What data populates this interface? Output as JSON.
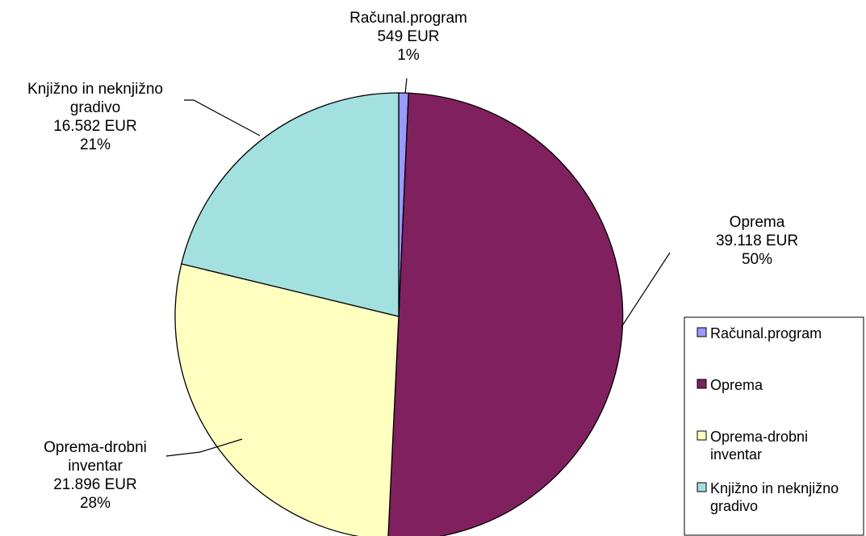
{
  "chart_data": {
    "type": "pie",
    "title": "",
    "unit": "EUR",
    "legend_position": "right",
    "slices": [
      {
        "name": "Računal.program",
        "label_lines": [
          "Računal.program"
        ],
        "value_label": "549 EUR",
        "percent_label": "1%",
        "value": 549,
        "color": "#9999ff",
        "legend_lines": [
          "Računal.program"
        ]
      },
      {
        "name": "Oprema",
        "label_lines": [
          "Oprema"
        ],
        "value_label": "39.118 EUR",
        "percent_label": "50%",
        "value": 39118,
        "color": "#80205f",
        "legend_lines": [
          "Oprema"
        ]
      },
      {
        "name": "Oprema-drobni inventar",
        "label_lines": [
          "Oprema-drobni",
          "inventar"
        ],
        "value_label": "21.896 EUR",
        "percent_label": "28%",
        "value": 21896,
        "color": "#ffffc0",
        "legend_lines": [
          "Oprema-drobni",
          "inventar"
        ]
      },
      {
        "name": "Knjižno in neknjižno gradivo",
        "label_lines": [
          "Knjižno in neknjižno",
          "gradivo"
        ],
        "value_label": "16.582 EUR",
        "percent_label": "21%",
        "value": 16582,
        "color": "#a3e0e0",
        "legend_lines": [
          "Knjižno in neknjižno",
          "gradivo"
        ]
      }
    ]
  }
}
